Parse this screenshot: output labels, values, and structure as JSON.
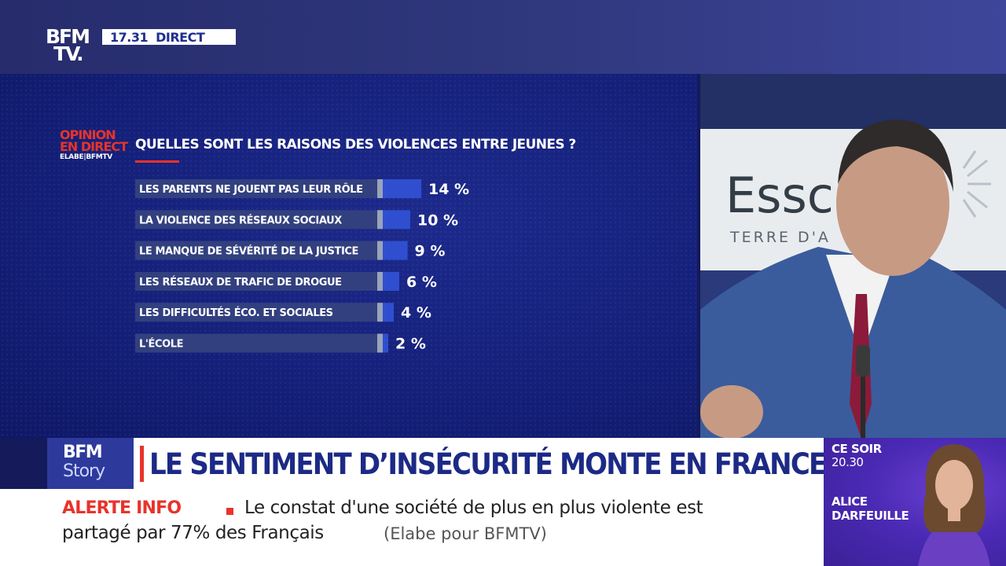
{
  "channel": {
    "logo_line1": "BFM",
    "logo_line2": "TV.",
    "time": "17.31",
    "live_label": "DIRECT"
  },
  "poll": {
    "brand_line1": "OPINION",
    "brand_line2": "EN DIRECT",
    "brand_line3": "ELABE|BFMTV"
  },
  "chart_data": {
    "type": "bar",
    "orientation": "horizontal",
    "title": "QUELLES SONT LES RAISONS DES VIOLENCES ENTRE JEUNES ?",
    "categories": [
      "LES PARENTS NE JOUENT PAS LEUR RÔLE",
      "LA VIOLENCE DES RÉSEAUX SOCIAUX",
      "LE MANQUE DE SÉVÉRITÉ DE LA JUSTICE",
      "LES RÉSEAUX DE TRAFIC DE DROGUE",
      "LES DIFFICULTÉS ÉCO. ET SOCIALES",
      "L'ÉCOLE"
    ],
    "values": [
      14,
      10,
      9,
      6,
      4,
      2
    ],
    "value_labels": [
      "14 %",
      "10 %",
      "9 %",
      "6 %",
      "4 %",
      "2 %"
    ],
    "unit": "%",
    "xlim": [
      0,
      14
    ]
  },
  "banner": {
    "brand_line1": "BFM",
    "brand_line2": "Story",
    "headline": "LE SENTIMENT D’INSÉCURITÉ MONTE EN FRANCE"
  },
  "ticker": {
    "label": "ALERTE INFO",
    "line1": "Le constat d'une société de plus en plus violente est",
    "line2": "partagé par 77% des Français",
    "source": "(Elabe pour BFMTV)"
  },
  "promo": {
    "when": "CE SOIR",
    "time": "20.30",
    "first_name": "ALICE",
    "last_name": "DARFEUILLE"
  },
  "video": {
    "backdrop_text_main": "Essc",
    "backdrop_text_sub": "TERRE D'A"
  },
  "colors": {
    "brand_blue": "#2d3a9c",
    "alert_red": "#e8332b",
    "bar_blue": "#2f4fd0",
    "promo_purple": "#4b2ab5"
  }
}
